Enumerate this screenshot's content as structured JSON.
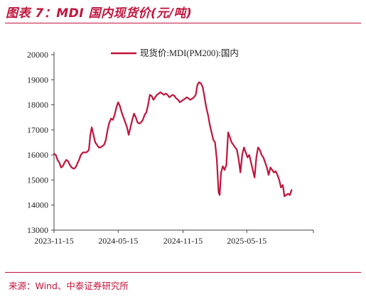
{
  "figure": {
    "title": "图表 7：MDI 国内现货价(元/吨)",
    "source": "来源：Wind、中泰证券研究所"
  },
  "colors": {
    "accent": "#c0143c",
    "series": "#c0143c",
    "axis": "#444444"
  },
  "chart_data": {
    "type": "line",
    "title": "",
    "xlabel": "",
    "ylabel": "",
    "ylim": [
      13000,
      20000
    ],
    "yticks": [
      13000,
      14000,
      15000,
      16000,
      17000,
      18000,
      19000,
      20000
    ],
    "xlim": [
      "2023-11-15",
      "2025-11-20"
    ],
    "xticks": [
      "2023-11-15",
      "2024-05-15",
      "2024-11-15",
      "2025-05-15"
    ],
    "grid": false,
    "legend_position": "top",
    "series": [
      {
        "name": "现货价:MDI(PM200):国内",
        "points": [
          [
            "2023-11-15",
            16050
          ],
          [
            "2023-11-20",
            16000
          ],
          [
            "2023-11-25",
            15800
          ],
          [
            "2023-11-30",
            15700
          ],
          [
            "2023-12-05",
            15500
          ],
          [
            "2023-12-10",
            15550
          ],
          [
            "2023-12-15",
            15700
          ],
          [
            "2023-12-20",
            15800
          ],
          [
            "2023-12-25",
            15750
          ],
          [
            "2023-12-30",
            15600
          ],
          [
            "2024-01-04",
            15500
          ],
          [
            "2024-01-10",
            15450
          ],
          [
            "2024-01-15",
            15500
          ],
          [
            "2024-01-20",
            15650
          ],
          [
            "2024-01-25",
            15800
          ],
          [
            "2024-01-30",
            16000
          ],
          [
            "2024-02-05",
            16100
          ],
          [
            "2024-02-15",
            16100
          ],
          [
            "2024-02-22",
            16200
          ],
          [
            "2024-02-26",
            16800
          ],
          [
            "2024-03-01",
            17100
          ],
          [
            "2024-03-06",
            16800
          ],
          [
            "2024-03-11",
            16500
          ],
          [
            "2024-03-16",
            16400
          ],
          [
            "2024-03-21",
            16300
          ],
          [
            "2024-03-26",
            16300
          ],
          [
            "2024-03-31",
            16350
          ],
          [
            "2024-04-05",
            16400
          ],
          [
            "2024-04-10",
            16600
          ],
          [
            "2024-04-15",
            17000
          ],
          [
            "2024-04-20",
            17300
          ],
          [
            "2024-04-25",
            17450
          ],
          [
            "2024-04-30",
            17400
          ],
          [
            "2024-05-05",
            17600
          ],
          [
            "2024-05-10",
            17900
          ],
          [
            "2024-05-15",
            18100
          ],
          [
            "2024-05-20",
            17950
          ],
          [
            "2024-05-25",
            17700
          ],
          [
            "2024-05-30",
            17500
          ],
          [
            "2024-06-04",
            17300
          ],
          [
            "2024-06-09",
            17100
          ],
          [
            "2024-06-14",
            16800
          ],
          [
            "2024-06-19",
            17100
          ],
          [
            "2024-06-24",
            17400
          ],
          [
            "2024-06-29",
            17650
          ],
          [
            "2024-07-04",
            17500
          ],
          [
            "2024-07-09",
            17300
          ],
          [
            "2024-07-14",
            17250
          ],
          [
            "2024-07-19",
            17300
          ],
          [
            "2024-07-24",
            17400
          ],
          [
            "2024-07-29",
            17600
          ],
          [
            "2024-08-03",
            17700
          ],
          [
            "2024-08-08",
            18000
          ],
          [
            "2024-08-13",
            18400
          ],
          [
            "2024-08-18",
            18350
          ],
          [
            "2024-08-23",
            18200
          ],
          [
            "2024-08-28",
            18300
          ],
          [
            "2024-09-02",
            18400
          ],
          [
            "2024-09-07",
            18450
          ],
          [
            "2024-09-12",
            18500
          ],
          [
            "2024-09-17",
            18450
          ],
          [
            "2024-09-22",
            18400
          ],
          [
            "2024-09-27",
            18450
          ],
          [
            "2024-10-02",
            18400
          ],
          [
            "2024-10-07",
            18300
          ],
          [
            "2024-10-12",
            18350
          ],
          [
            "2024-10-17",
            18400
          ],
          [
            "2024-10-22",
            18350
          ],
          [
            "2024-10-27",
            18250
          ],
          [
            "2024-11-01",
            18200
          ],
          [
            "2024-11-06",
            18100
          ],
          [
            "2024-11-11",
            18150
          ],
          [
            "2024-11-16",
            18200
          ],
          [
            "2024-11-21",
            18250
          ],
          [
            "2024-11-26",
            18300
          ],
          [
            "2024-12-01",
            18250
          ],
          [
            "2024-12-06",
            18200
          ],
          [
            "2024-12-11",
            18250
          ],
          [
            "2024-12-16",
            18300
          ],
          [
            "2024-12-21",
            18400
          ],
          [
            "2024-12-26",
            18800
          ],
          [
            "2024-12-31",
            18900
          ],
          [
            "2025-01-05",
            18850
          ],
          [
            "2025-01-10",
            18700
          ],
          [
            "2025-01-15",
            18300
          ],
          [
            "2025-01-20",
            17900
          ],
          [
            "2025-01-25",
            17600
          ],
          [
            "2025-01-30",
            17200
          ],
          [
            "2025-02-04",
            16900
          ],
          [
            "2025-02-09",
            16600
          ],
          [
            "2025-02-14",
            16500
          ],
          [
            "2025-02-19",
            15800
          ],
          [
            "2025-02-24",
            14500
          ],
          [
            "2025-02-27",
            14400
          ],
          [
            "2025-03-03",
            15300
          ],
          [
            "2025-03-08",
            15550
          ],
          [
            "2025-03-13",
            15400
          ],
          [
            "2025-03-18",
            15600
          ],
          [
            "2025-03-23",
            16900
          ],
          [
            "2025-03-28",
            16700
          ],
          [
            "2025-04-02",
            16500
          ],
          [
            "2025-04-07",
            16400
          ],
          [
            "2025-04-12",
            16300
          ],
          [
            "2025-04-17",
            16200
          ],
          [
            "2025-04-22",
            15800
          ],
          [
            "2025-04-27",
            15300
          ],
          [
            "2025-05-02",
            16000
          ],
          [
            "2025-05-07",
            16300
          ],
          [
            "2025-05-12",
            16100
          ],
          [
            "2025-05-17",
            15900
          ],
          [
            "2025-05-22",
            16000
          ],
          [
            "2025-05-27",
            15700
          ],
          [
            "2025-06-01",
            15400
          ],
          [
            "2025-06-06",
            15100
          ],
          [
            "2025-06-11",
            15900
          ],
          [
            "2025-06-16",
            16300
          ],
          [
            "2025-06-21",
            16200
          ],
          [
            "2025-06-26",
            16000
          ],
          [
            "2025-07-01",
            15900
          ],
          [
            "2025-07-06",
            15700
          ],
          [
            "2025-07-11",
            15500
          ],
          [
            "2025-07-16",
            15200
          ],
          [
            "2025-07-21",
            15500
          ],
          [
            "2025-07-26",
            15400
          ],
          [
            "2025-07-31",
            15300
          ],
          [
            "2025-08-05",
            15350
          ],
          [
            "2025-08-10",
            15200
          ],
          [
            "2025-08-15",
            15000
          ],
          [
            "2025-08-20",
            14700
          ],
          [
            "2025-08-25",
            14800
          ],
          [
            "2025-08-30",
            14350
          ],
          [
            "2025-09-04",
            14400
          ],
          [
            "2025-09-09",
            14450
          ],
          [
            "2025-09-14",
            14400
          ],
          [
            "2025-09-19",
            14600
          ]
        ]
      }
    ]
  }
}
